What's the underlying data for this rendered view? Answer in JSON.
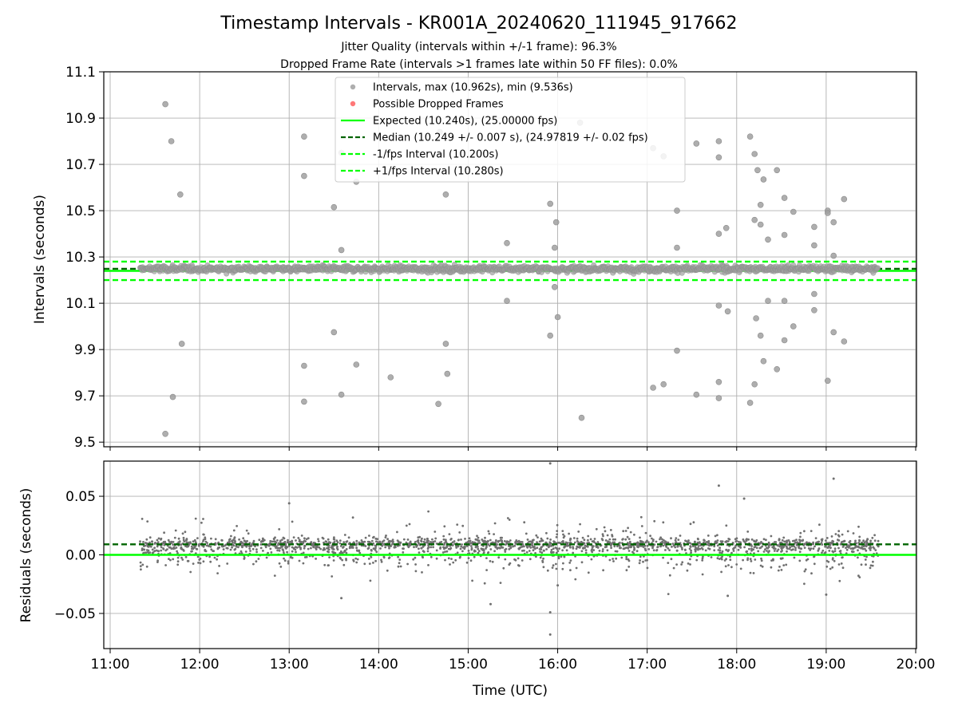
{
  "title": "Timestamp Intervals - KR001A_20240620_111945_917662",
  "subtitle_1": "Jitter Quality (intervals within +/-1 frame): 96.3%",
  "subtitle_2": "Dropped Frame Rate (intervals >1 frames late within 50 FF files): 0.0%",
  "colors": {
    "points": "#808080",
    "dropped": "#ff0000",
    "expected": "#00ff00",
    "median": "#006400",
    "fps_band": "#00ff00",
    "grid": "#b0b0b0",
    "axes": "#000000"
  },
  "chart_data": [
    {
      "id": "intervals",
      "type": "scatter",
      "xlabel": "",
      "ylabel": "Intervals (seconds)",
      "xlim": [
        "11:00",
        "20:00"
      ],
      "ylim": [
        9.48,
        11.1
      ],
      "y_ticks": [
        "9.5",
        "9.7",
        "9.9",
        "10.1",
        "10.3",
        "10.5",
        "10.7",
        "10.9",
        "11.1"
      ],
      "grid": true,
      "legend_position": "top-center",
      "legend": [
        {
          "label": "Intervals, max (10.962s), min (9.536s)",
          "kind": "point",
          "color": "#a0a0a0"
        },
        {
          "label": "Possible Dropped Frames",
          "kind": "point",
          "color": "#ff6060"
        },
        {
          "label": "Expected (10.240s), (25.00000 fps)",
          "kind": "line",
          "color": "#00ff00",
          "dash": false
        },
        {
          "label": "Median (10.249 +/- 0.007 s), (24.97819 +/- 0.02 fps)",
          "kind": "line",
          "color": "#006400",
          "dash": true
        },
        {
          "label": "-1/fps Interval (10.200s)",
          "kind": "line",
          "color": "#00ff00",
          "dash": true
        },
        {
          "label": "+1/fps Interval (10.280s)",
          "kind": "line",
          "color": "#00ff00",
          "dash": true
        }
      ],
      "hlines": [
        {
          "name": "Expected",
          "y": 10.24
        },
        {
          "name": "Median",
          "y": 10.249
        },
        {
          "name": "-1/fps Interval",
          "y": 10.2
        },
        {
          "name": "+1/fps Interval",
          "y": 10.28
        }
      ],
      "band": {
        "from": 10.222,
        "to": 10.278,
        "time_from": "11:20",
        "time_to": "19:35"
      },
      "outliers": [
        [
          "11:37",
          10.96
        ],
        [
          "11:37",
          9.536
        ],
        [
          "11:41",
          10.8
        ],
        [
          "11:42",
          9.695
        ],
        [
          "11:47",
          10.57
        ],
        [
          "11:48",
          9.925
        ],
        [
          "13:10",
          10.82
        ],
        [
          "13:10",
          10.65
        ],
        [
          "13:10",
          9.83
        ],
        [
          "13:10",
          9.675
        ],
        [
          "13:30",
          10.515
        ],
        [
          "13:30",
          9.975
        ],
        [
          "13:35",
          10.75
        ],
        [
          "13:35",
          10.33
        ],
        [
          "13:35",
          9.705
        ],
        [
          "13:45",
          10.625
        ],
        [
          "13:45",
          9.835
        ],
        [
          "14:08",
          9.78
        ],
        [
          "14:41",
          10.84
        ],
        [
          "14:40",
          9.665
        ],
        [
          "14:45",
          10.57
        ],
        [
          "14:45",
          9.925
        ],
        [
          "14:46",
          9.795
        ],
        [
          "15:26",
          10.36
        ],
        [
          "15:26",
          10.11
        ],
        [
          "15:55",
          10.53
        ],
        [
          "15:55",
          9.96
        ],
        [
          "15:59",
          10.45
        ],
        [
          "16:00",
          10.04
        ],
        [
          "15:58",
          10.34
        ],
        [
          "15:58",
          10.17
        ],
        [
          "16:15",
          10.88
        ],
        [
          "16:16",
          9.605
        ],
        [
          "17:04",
          10.77
        ],
        [
          "17:04",
          9.735
        ],
        [
          "17:11",
          10.735
        ],
        [
          "17:11",
          9.75
        ],
        [
          "17:20",
          10.5
        ],
        [
          "17:20",
          10.34
        ],
        [
          "17:20",
          9.895
        ],
        [
          "17:33",
          10.79
        ],
        [
          "17:33",
          9.705
        ],
        [
          "17:48",
          10.8
        ],
        [
          "17:48",
          10.73
        ],
        [
          "17:48",
          10.4
        ],
        [
          "17:48",
          10.09
        ],
        [
          "17:48",
          9.76
        ],
        [
          "17:48",
          9.69
        ],
        [
          "17:53",
          10.425
        ],
        [
          "17:54",
          10.065
        ],
        [
          "18:09",
          10.82
        ],
        [
          "18:09",
          9.67
        ],
        [
          "18:12",
          10.745
        ],
        [
          "18:12",
          10.46
        ],
        [
          "18:13",
          10.035
        ],
        [
          "18:12",
          9.75
        ],
        [
          "18:14",
          10.675
        ],
        [
          "18:16",
          10.525
        ],
        [
          "18:16",
          10.44
        ],
        [
          "18:16",
          9.96
        ],
        [
          "18:18",
          10.635
        ],
        [
          "18:18",
          9.85
        ],
        [
          "18:21",
          10.375
        ],
        [
          "18:21",
          10.11
        ],
        [
          "18:27",
          10.675
        ],
        [
          "18:27",
          9.815
        ],
        [
          "18:32",
          10.555
        ],
        [
          "18:32",
          10.395
        ],
        [
          "18:32",
          10.11
        ],
        [
          "18:32",
          9.94
        ],
        [
          "18:38",
          10.495
        ],
        [
          "18:38",
          10.0
        ],
        [
          "18:52",
          10.43
        ],
        [
          "18:52",
          10.35
        ],
        [
          "18:52",
          10.14
        ],
        [
          "18:52",
          10.07
        ],
        [
          "19:01",
          10.5
        ],
        [
          "19:01",
          10.49
        ],
        [
          "19:01",
          9.765
        ],
        [
          "19:05",
          10.45
        ],
        [
          "19:05",
          10.305
        ],
        [
          "19:05",
          9.975
        ],
        [
          "19:12",
          10.55
        ],
        [
          "19:12",
          9.935
        ]
      ]
    },
    {
      "id": "residuals",
      "type": "scatter",
      "xlabel": "Time (UTC)",
      "ylabel": "Residuals (seconds)",
      "xlim": [
        "11:00",
        "20:00"
      ],
      "ylim": [
        -0.08,
        0.08
      ],
      "x_ticks": [
        "11:00",
        "12:00",
        "13:00",
        "14:00",
        "15:00",
        "16:00",
        "17:00",
        "18:00",
        "19:00",
        "20:00"
      ],
      "y_ticks": [
        "−0.05",
        "0.00",
        "0.05"
      ],
      "grid": true,
      "hlines": [
        {
          "name": "Zero",
          "y": 0.0
        },
        {
          "name": "Median",
          "y": 0.009
        }
      ],
      "points_time_range": [
        "11:20",
        "19:35"
      ],
      "notable_points": [
        [
          "15:55",
          0.078
        ],
        [
          "19:05",
          0.065
        ],
        [
          "17:48",
          0.059
        ],
        [
          "18:05",
          0.048
        ],
        [
          "15:55",
          -0.068
        ],
        [
          "15:55",
          -0.049
        ],
        [
          "13:35",
          -0.037
        ],
        [
          "15:15",
          -0.042
        ],
        [
          "17:54",
          -0.035
        ],
        [
          "19:00",
          -0.034
        ],
        [
          "13:00",
          0.044
        ],
        [
          "16:00",
          -0.026
        ]
      ]
    }
  ]
}
